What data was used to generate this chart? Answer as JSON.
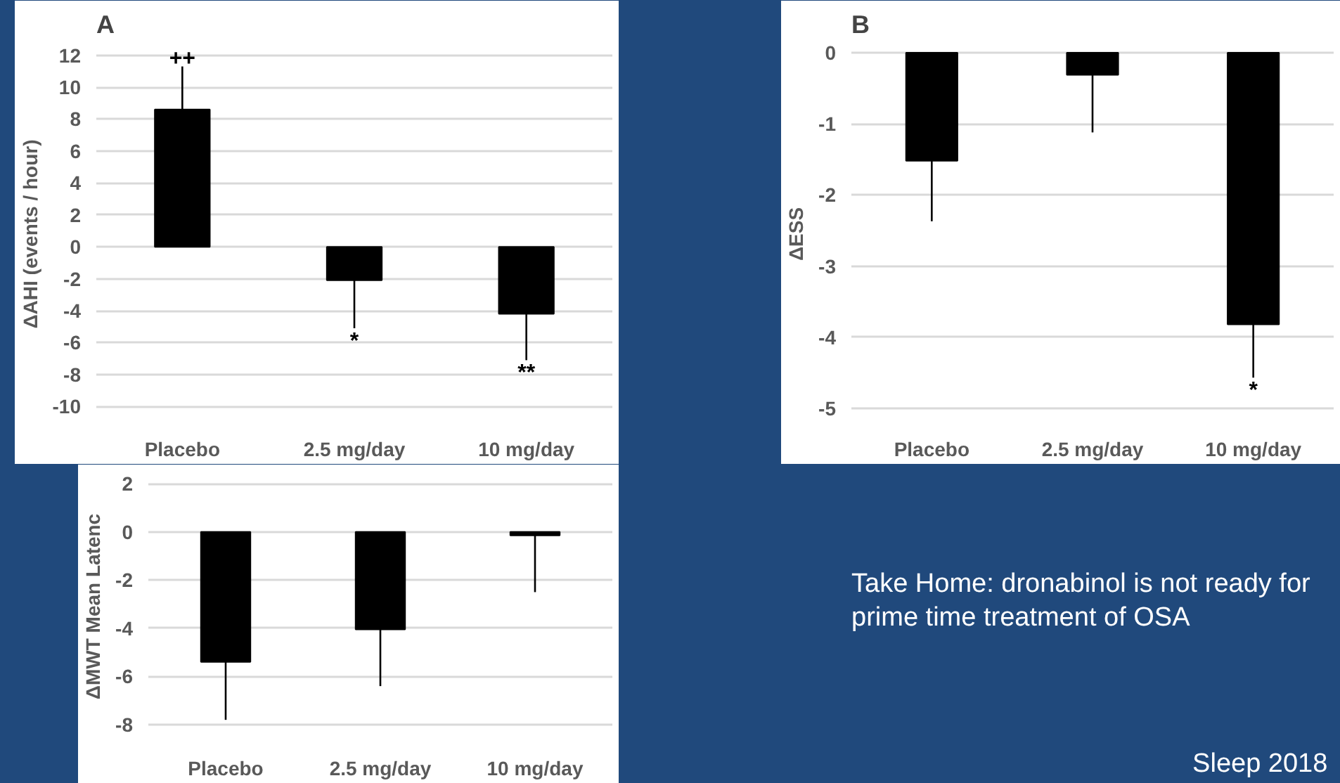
{
  "chart_data": [
    {
      "type": "bar",
      "title": "A",
      "ylabel": "ΔAHI (events / hour)",
      "categories": [
        "Placebo",
        "2.5 mg/day",
        "10 mg/day"
      ],
      "values": [
        8.6,
        -2.1,
        -4.2
      ],
      "errors": [
        [
          8.6,
          11.3
        ],
        [
          -5.1,
          -2.1
        ],
        [
          -7.1,
          -4.2
        ]
      ],
      "color": "#000000",
      "ylim": [
        -11,
        12.6
      ],
      "yticks": [
        12,
        10,
        8,
        6,
        4,
        2,
        0,
        -2,
        -4,
        -6,
        -8,
        -10
      ],
      "grid": "y",
      "annotations": [
        {
          "text": "++",
          "x": "Placebo",
          "y": 11.3
        },
        {
          "text": "*",
          "x": "2.5 mg/day",
          "y": -5.1
        },
        {
          "text": "**",
          "x": "10 mg/day",
          "y": -7.1
        }
      ]
    },
    {
      "type": "bar",
      "title": "B",
      "ylabel": "ΔESS",
      "categories": [
        "Placebo",
        "2.5 mg/day",
        "10 mg/day"
      ],
      "values": [
        -1.52,
        -0.31,
        -3.82
      ],
      "errors": [
        [
          -2.37,
          -1.52
        ],
        [
          -1.12,
          -0.31
        ],
        [
          -4.57,
          -3.82
        ]
      ],
      "color": "#000000",
      "ylim": [
        -5.2,
        0.1
      ],
      "yticks": [
        0,
        -1,
        -2,
        -3,
        -4,
        -5
      ],
      "grid": "y",
      "annotations": [
        {
          "text": "*",
          "x": "10 mg/day",
          "y": -4.57
        }
      ]
    },
    {
      "type": "bar",
      "ylabel": "ΔMWT Mean Latenc",
      "categories": [
        "Placebo",
        "2.5 mg/day",
        "10 mg/day"
      ],
      "values": [
        -5.4,
        -4.05,
        -0.15
      ],
      "errors": [
        [
          -7.8,
          -5.4
        ],
        [
          -6.4,
          -4.05
        ],
        [
          -2.5,
          -0.15
        ]
      ],
      "color": "#000000",
      "ylim": [
        -8.7,
        2.5
      ],
      "yticks": [
        2,
        0,
        -2,
        -4,
        -6,
        -8
      ],
      "grid": "y"
    },
    {
      "type": "other",
      "annotations": [
        "Take Home: dronabinol is not ready for prime time treatment of OSA",
        "Sleep 2018"
      ]
    }
  ]
}
